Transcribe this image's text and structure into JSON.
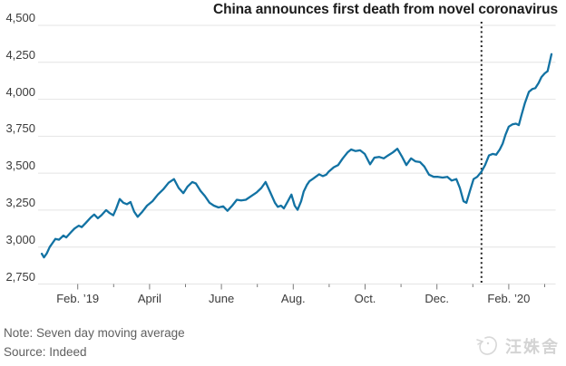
{
  "colors": {
    "background": "#ffffff",
    "line": "#1272a3",
    "grid": "#e4e4e4",
    "tick": "#7a7a7a",
    "event_line": "#222222",
    "title_text": "#1c1c1c",
    "axis_text": "#3a3a3a",
    "note_text": "#5f5f5f",
    "watermark": "#d4d4d4"
  },
  "chart_data": {
    "type": "line",
    "title": "China announces first death from novel coronavirus",
    "note": "Note: Seven day moving average",
    "source": "Source: Indeed",
    "grid": true,
    "legend": false,
    "ylim": [
      2750,
      4500
    ],
    "y_axis": {
      "min": 2750,
      "max": 4500,
      "step": 250,
      "ticks": [
        {
          "v": 2750,
          "t": "2,750"
        },
        {
          "v": 3000,
          "t": "3,000"
        },
        {
          "v": 3250,
          "t": "3,250"
        },
        {
          "v": 3500,
          "t": "3,500"
        },
        {
          "v": 3750,
          "t": "3,750"
        },
        {
          "v": 4000,
          "t": "4,000"
        },
        {
          "v": 4250,
          "t": "4,250"
        },
        {
          "v": 4500,
          "t": "4,500"
        }
      ]
    },
    "x_axis": {
      "unit": "months (0 = Jan. 2019)",
      "ticks": [
        {
          "month": 1,
          "label": "Feb. ’19",
          "major": true
        },
        {
          "month": 2,
          "label": "",
          "major": false
        },
        {
          "month": 3,
          "label": "April",
          "major": true
        },
        {
          "month": 4,
          "label": "",
          "major": false
        },
        {
          "month": 5,
          "label": "June",
          "major": true
        },
        {
          "month": 6,
          "label": "",
          "major": false
        },
        {
          "month": 7,
          "label": "Aug.",
          "major": true
        },
        {
          "month": 8,
          "label": "",
          "major": false
        },
        {
          "month": 9,
          "label": "Oct.",
          "major": true
        },
        {
          "month": 10,
          "label": "",
          "major": false
        },
        {
          "month": 11,
          "label": "Dec.",
          "major": true
        },
        {
          "month": 12,
          "label": "",
          "major": false
        },
        {
          "month": 13,
          "label": "Feb. ’20",
          "major": true
        },
        {
          "month": 14,
          "label": "",
          "major": false
        }
      ]
    },
    "event_line": {
      "label": "China announces first death from novel coronavirus",
      "x_month": 12.24,
      "style": "dotted"
    },
    "series": [
      {
        "name": "Seven day moving average",
        "color": "#1272a3",
        "points": [
          [
            0.0,
            2955
          ],
          [
            0.06,
            2930
          ],
          [
            0.14,
            2958
          ],
          [
            0.22,
            3000
          ],
          [
            0.3,
            3028
          ],
          [
            0.38,
            3055
          ],
          [
            0.48,
            3050
          ],
          [
            0.6,
            3078
          ],
          [
            0.68,
            3065
          ],
          [
            0.81,
            3100
          ],
          [
            0.91,
            3125
          ],
          [
            1.03,
            3145
          ],
          [
            1.11,
            3135
          ],
          [
            1.23,
            3165
          ],
          [
            1.36,
            3200
          ],
          [
            1.46,
            3220
          ],
          [
            1.56,
            3195
          ],
          [
            1.66,
            3215
          ],
          [
            1.79,
            3250
          ],
          [
            1.89,
            3230
          ],
          [
            1.99,
            3215
          ],
          [
            2.07,
            3260
          ],
          [
            2.17,
            3325
          ],
          [
            2.27,
            3300
          ],
          [
            2.37,
            3290
          ],
          [
            2.47,
            3305
          ],
          [
            2.57,
            3240
          ],
          [
            2.67,
            3205
          ],
          [
            2.8,
            3240
          ],
          [
            2.93,
            3280
          ],
          [
            3.08,
            3310
          ],
          [
            3.23,
            3355
          ],
          [
            3.38,
            3390
          ],
          [
            3.53,
            3435
          ],
          [
            3.68,
            3460
          ],
          [
            3.81,
            3400
          ],
          [
            3.94,
            3365
          ],
          [
            4.06,
            3410
          ],
          [
            4.19,
            3440
          ],
          [
            4.29,
            3430
          ],
          [
            4.42,
            3380
          ],
          [
            4.54,
            3345
          ],
          [
            4.67,
            3300
          ],
          [
            4.79,
            3280
          ],
          [
            4.92,
            3268
          ],
          [
            5.05,
            3275
          ],
          [
            5.17,
            3245
          ],
          [
            5.3,
            3280
          ],
          [
            5.43,
            3320
          ],
          [
            5.55,
            3315
          ],
          [
            5.68,
            3320
          ],
          [
            5.83,
            3345
          ],
          [
            5.98,
            3370
          ],
          [
            6.11,
            3400
          ],
          [
            6.23,
            3440
          ],
          [
            6.36,
            3370
          ],
          [
            6.49,
            3300
          ],
          [
            6.57,
            3272
          ],
          [
            6.66,
            3280
          ],
          [
            6.74,
            3262
          ],
          [
            6.85,
            3310
          ],
          [
            6.95,
            3355
          ],
          [
            7.04,
            3280
          ],
          [
            7.12,
            3252
          ],
          [
            7.22,
            3310
          ],
          [
            7.29,
            3375
          ],
          [
            7.38,
            3420
          ],
          [
            7.45,
            3445
          ],
          [
            7.55,
            3462
          ],
          [
            7.65,
            3480
          ],
          [
            7.72,
            3492
          ],
          [
            7.82,
            3480
          ],
          [
            7.92,
            3490
          ],
          [
            7.98,
            3508
          ],
          [
            8.13,
            3540
          ],
          [
            8.25,
            3555
          ],
          [
            8.38,
            3600
          ],
          [
            8.51,
            3640
          ],
          [
            8.61,
            3660
          ],
          [
            8.73,
            3650
          ],
          [
            8.86,
            3655
          ],
          [
            8.99,
            3630
          ],
          [
            9.14,
            3560
          ],
          [
            9.26,
            3605
          ],
          [
            9.39,
            3610
          ],
          [
            9.52,
            3600
          ],
          [
            9.64,
            3620
          ],
          [
            9.77,
            3640
          ],
          [
            9.9,
            3665
          ],
          [
            10.02,
            3615
          ],
          [
            10.15,
            3555
          ],
          [
            10.28,
            3600
          ],
          [
            10.4,
            3580
          ],
          [
            10.53,
            3575
          ],
          [
            10.65,
            3545
          ],
          [
            10.78,
            3490
          ],
          [
            10.91,
            3475
          ],
          [
            11.03,
            3475
          ],
          [
            11.16,
            3470
          ],
          [
            11.29,
            3475
          ],
          [
            11.41,
            3450
          ],
          [
            11.54,
            3460
          ],
          [
            11.64,
            3400
          ],
          [
            11.74,
            3310
          ],
          [
            11.82,
            3300
          ],
          [
            11.92,
            3380
          ],
          [
            12.02,
            3460
          ],
          [
            12.12,
            3475
          ],
          [
            12.24,
            3510
          ],
          [
            12.34,
            3555
          ],
          [
            12.45,
            3620
          ],
          [
            12.55,
            3630
          ],
          [
            12.65,
            3625
          ],
          [
            12.75,
            3660
          ],
          [
            12.83,
            3700
          ],
          [
            12.91,
            3760
          ],
          [
            13.0,
            3815
          ],
          [
            13.1,
            3830
          ],
          [
            13.2,
            3835
          ],
          [
            13.28,
            3825
          ],
          [
            13.35,
            3890
          ],
          [
            13.45,
            3975
          ],
          [
            13.56,
            4050
          ],
          [
            13.66,
            4070
          ],
          [
            13.74,
            4075
          ],
          [
            13.83,
            4110
          ],
          [
            13.91,
            4150
          ],
          [
            14.0,
            4175
          ],
          [
            14.08,
            4190
          ],
          [
            14.13,
            4240
          ],
          [
            14.19,
            4305
          ]
        ]
      }
    ]
  },
  "watermark": {
    "text": "汪姝舍",
    "icon": "watermark-logo-icon"
  }
}
